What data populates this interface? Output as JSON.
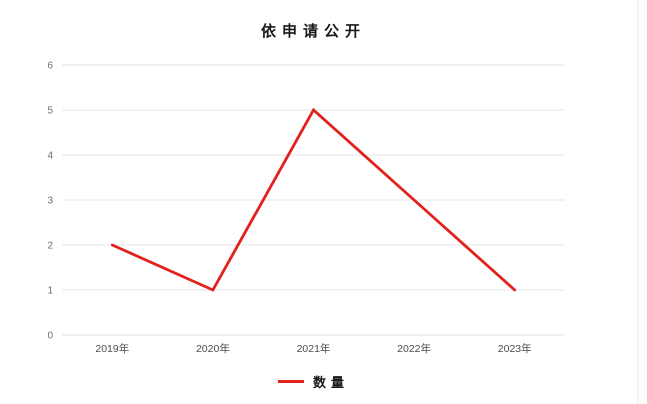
{
  "title": "依申请公开",
  "legend": {
    "label": "数量"
  },
  "chart_data": {
    "type": "line",
    "title": "依申请公开",
    "categories": [
      "2019年",
      "2020年",
      "2021年",
      "2022年",
      "2023年"
    ],
    "series": [
      {
        "name": "数量",
        "values": [
          2,
          1,
          5,
          3,
          1
        ],
        "color": "#e2211c"
      }
    ],
    "xlabel": "",
    "ylabel": "",
    "ylim": [
      0,
      6
    ],
    "yticks": [
      0,
      1,
      2,
      3,
      4,
      5,
      6
    ],
    "grid": true,
    "legend_position": "bottom",
    "colors": {
      "line": "#e2211c",
      "gridline": "#e4e4e4",
      "y_tick_label": "#6e6e6e",
      "x_tick_label": "#4d4d4d",
      "title": "#1a1a1a",
      "background": "#ffffff"
    }
  }
}
